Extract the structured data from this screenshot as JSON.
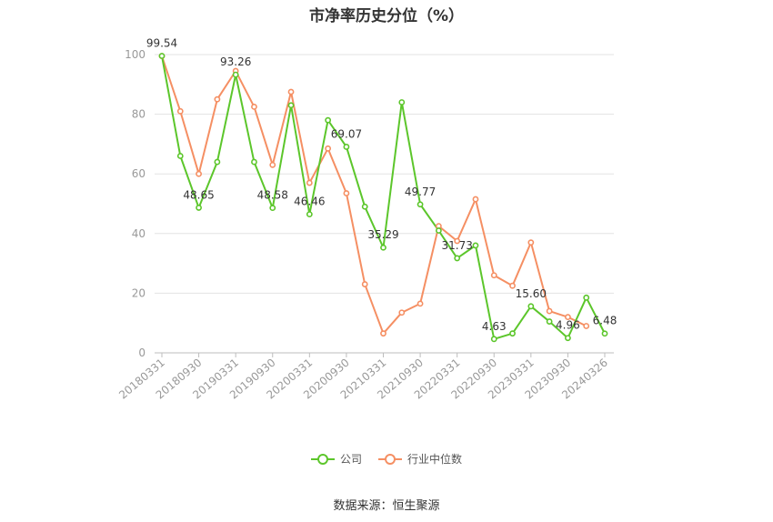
{
  "title": "市净率历史分位（%）",
  "source_text": "数据来源：恒生聚源",
  "colors": {
    "company": "#5cc62b",
    "industry": "#f58f63"
  },
  "chart_data": {
    "type": "line",
    "title": "市净率历史分位（%）",
    "ylim": [
      0,
      100
    ],
    "yticks": [
      0,
      20,
      40,
      60,
      80,
      100
    ],
    "grid": true,
    "legend_position": "bottom",
    "x": [
      "20180331",
      "20180630",
      "20180930",
      "20181231",
      "20190331",
      "20190630",
      "20190930",
      "20191231",
      "20200331",
      "20200630",
      "20200930",
      "20201231",
      "20210331",
      "20210630",
      "20210930",
      "20211231",
      "20220331",
      "20220630",
      "20220930",
      "20221231",
      "20230331",
      "20230630",
      "20230930",
      "20231231",
      "20240326"
    ],
    "x_tick_labels": [
      "20180331",
      "20180930",
      "20190331",
      "20190930",
      "20200331",
      "20200930",
      "20210331",
      "20210930",
      "20220331",
      "20220930",
      "20230331",
      "20230930",
      "20240326"
    ],
    "series": [
      {
        "name": "公司",
        "values": [
          99.54,
          66,
          48.65,
          64,
          93.26,
          64,
          48.58,
          83,
          46.46,
          78,
          69.07,
          49,
          35.29,
          84,
          49.77,
          41,
          31.73,
          36,
          4.63,
          6.5,
          15.6,
          10.5,
          4.96,
          18.5,
          6.48
        ],
        "labels": [
          "99.54",
          "",
          "48.65",
          "",
          "93.26",
          "",
          "48.58",
          "",
          "46.46",
          "",
          "69.07",
          "",
          "35.29",
          "",
          "49.77",
          "",
          "31.73",
          "",
          "4.63",
          "",
          "15.60",
          "",
          "4.96",
          "",
          "6.48"
        ]
      },
      {
        "name": "行业中位数",
        "values": [
          99.5,
          81,
          60,
          85,
          94.5,
          82.5,
          63,
          87.5,
          57,
          68.5,
          53.5,
          23,
          6.5,
          13.5,
          16.5,
          42.5,
          37.5,
          51.5,
          26,
          22.5,
          37,
          14,
          12,
          9,
          null
        ],
        "labels": []
      }
    ]
  }
}
